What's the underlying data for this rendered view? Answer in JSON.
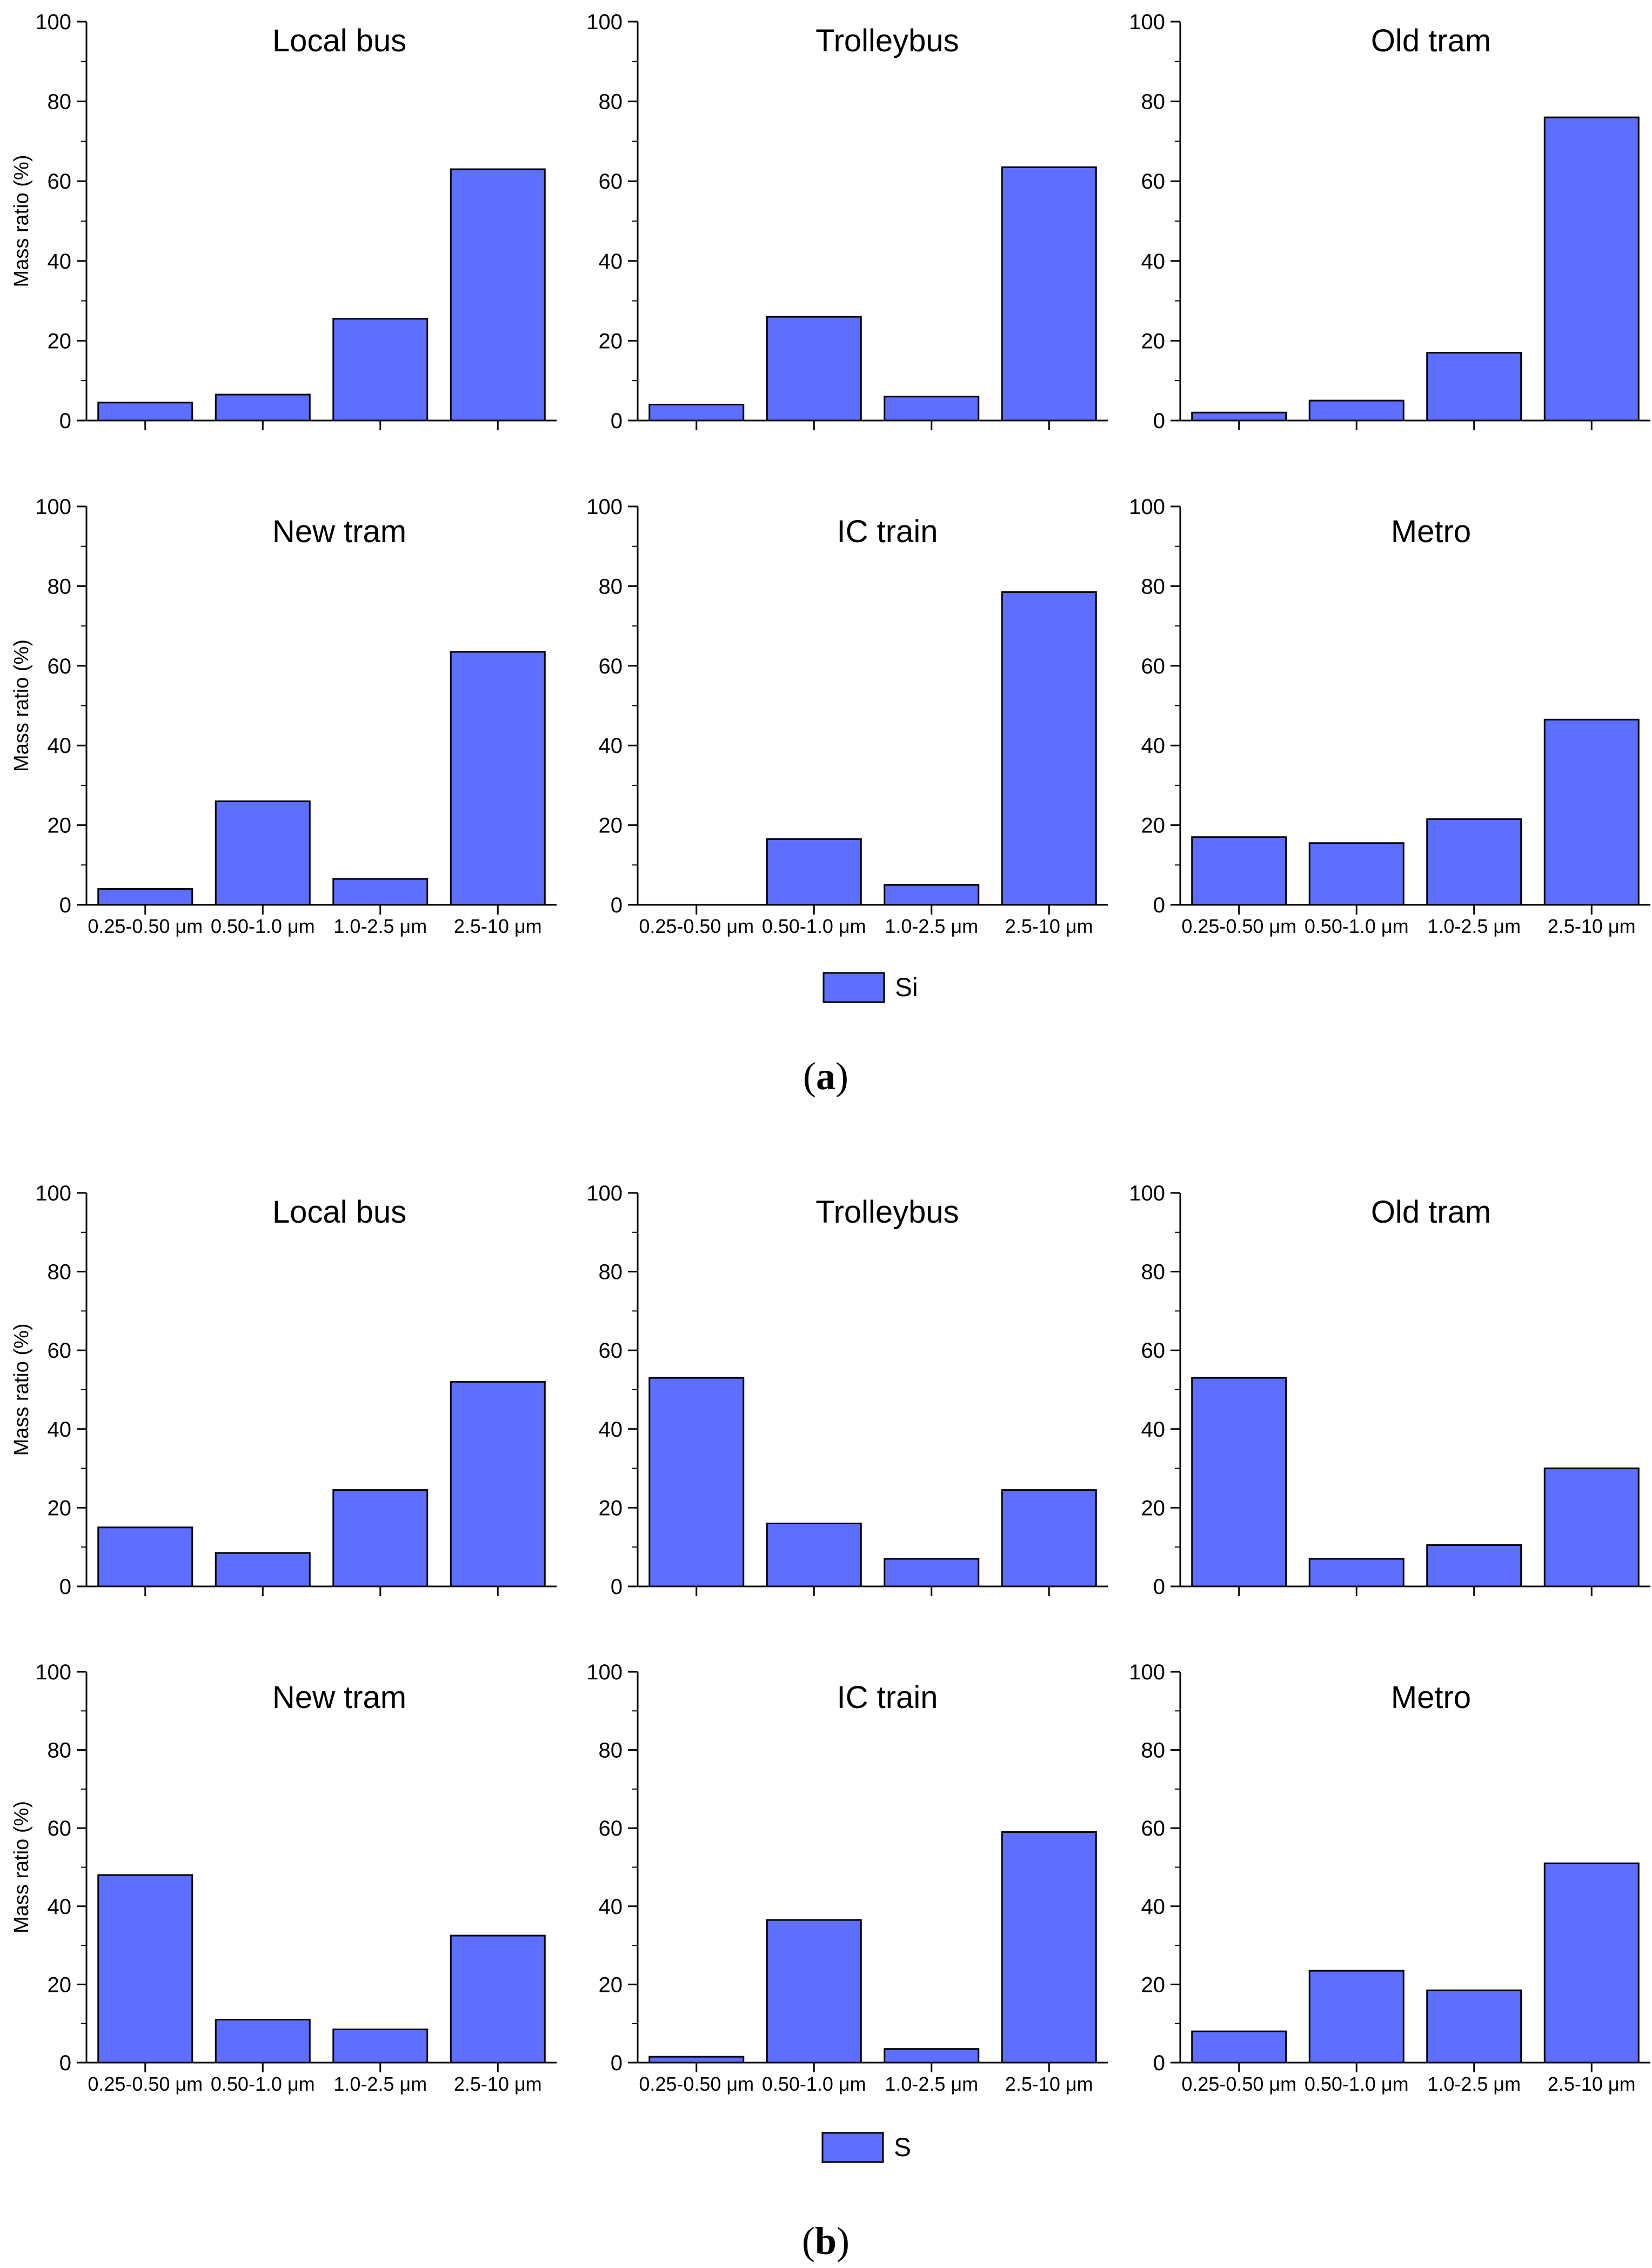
{
  "bar_color": "#5e6eff",
  "categories": [
    "0.25-0.50 μm",
    "0.50-1.0 μm",
    "1.0-2.5 μm",
    "2.5-10 μm"
  ],
  "y_ticks": [
    0,
    20,
    40,
    60,
    80,
    100
  ],
  "ylabel": "Mass ratio (%)",
  "panels": [
    {
      "label_open": "(",
      "label_letter": "a",
      "label_close": ")",
      "legend": "Si"
    },
    {
      "label_open": "(",
      "label_letter": "b",
      "label_close": ")",
      "legend": "S"
    }
  ],
  "chart_data": [
    {
      "type": "bar",
      "panel": "a",
      "title": "Local bus",
      "categories": [
        "0.25-0.50 μm",
        "0.50-1.0 μm",
        "1.0-2.5 μm",
        "2.5-10 μm"
      ],
      "series": [
        {
          "name": "Si",
          "values": [
            4.5,
            6.5,
            25.5,
            63
          ]
        }
      ],
      "ylabel": "Mass ratio (%)",
      "ylim": [
        0,
        100
      ]
    },
    {
      "type": "bar",
      "panel": "a",
      "title": "Trolleybus",
      "categories": [
        "0.25-0.50 μm",
        "0.50-1.0 μm",
        "1.0-2.5 μm",
        "2.5-10 μm"
      ],
      "series": [
        {
          "name": "Si",
          "values": [
            4,
            26,
            6,
            63.5
          ]
        }
      ],
      "ylabel": "",
      "ylim": [
        0,
        100
      ]
    },
    {
      "type": "bar",
      "panel": "a",
      "title": "Old tram",
      "categories": [
        "0.25-0.50 μm",
        "0.50-1.0 μm",
        "1.0-2.5 μm",
        "2.5-10 μm"
      ],
      "series": [
        {
          "name": "Si",
          "values": [
            2,
            5,
            17,
            76
          ]
        }
      ],
      "ylabel": "",
      "ylim": [
        0,
        100
      ]
    },
    {
      "type": "bar",
      "panel": "a",
      "title": "New tram",
      "categories": [
        "0.25-0.50 μm",
        "0.50-1.0 μm",
        "1.0-2.5 μm",
        "2.5-10 μm"
      ],
      "series": [
        {
          "name": "Si",
          "values": [
            4,
            26,
            6.5,
            63.5
          ]
        }
      ],
      "ylabel": "Mass ratio (%)",
      "ylim": [
        0,
        100
      ]
    },
    {
      "type": "bar",
      "panel": "a",
      "title": "IC train",
      "categories": [
        "0.25-0.50 μm",
        "0.50-1.0 μm",
        "1.0-2.5 μm",
        "2.5-10 μm"
      ],
      "series": [
        {
          "name": "Si",
          "values": [
            0,
            16.5,
            5,
            78.5
          ]
        }
      ],
      "ylabel": "",
      "ylim": [
        0,
        100
      ]
    },
    {
      "type": "bar",
      "panel": "a",
      "title": "Metro",
      "categories": [
        "0.25-0.50 μm",
        "0.50-1.0 μm",
        "1.0-2.5 μm",
        "2.5-10 μm"
      ],
      "series": [
        {
          "name": "Si",
          "values": [
            17,
            15.5,
            21.5,
            46.5
          ]
        }
      ],
      "ylabel": "",
      "ylim": [
        0,
        100
      ]
    },
    {
      "type": "bar",
      "panel": "b",
      "title": "Local bus",
      "categories": [
        "0.25-0.50 μm",
        "0.50-1.0 μm",
        "1.0-2.5 μm",
        "2.5-10 μm"
      ],
      "series": [
        {
          "name": "S",
          "values": [
            15,
            8.5,
            24.5,
            52
          ]
        }
      ],
      "ylabel": "Mass ratio (%)",
      "ylim": [
        0,
        100
      ]
    },
    {
      "type": "bar",
      "panel": "b",
      "title": "Trolleybus",
      "categories": [
        "0.25-0.50 μm",
        "0.50-1.0 μm",
        "1.0-2.5 μm",
        "2.5-10 μm"
      ],
      "series": [
        {
          "name": "S",
          "values": [
            53,
            16,
            7,
            24.5
          ]
        }
      ],
      "ylabel": "",
      "ylim": [
        0,
        100
      ]
    },
    {
      "type": "bar",
      "panel": "b",
      "title": "Old tram",
      "categories": [
        "0.25-0.50 μm",
        "0.50-1.0 μm",
        "1.0-2.5 μm",
        "2.5-10 μm"
      ],
      "series": [
        {
          "name": "S",
          "values": [
            53,
            7,
            10.5,
            30
          ]
        }
      ],
      "ylabel": "",
      "ylim": [
        0,
        100
      ]
    },
    {
      "type": "bar",
      "panel": "b",
      "title": "New tram",
      "categories": [
        "0.25-0.50 μm",
        "0.50-1.0 μm",
        "1.0-2.5 μm",
        "2.5-10 μm"
      ],
      "series": [
        {
          "name": "S",
          "values": [
            48,
            11,
            8.5,
            32.5
          ]
        }
      ],
      "ylabel": "Mass ratio (%)",
      "ylim": [
        0,
        100
      ]
    },
    {
      "type": "bar",
      "panel": "b",
      "title": "IC train",
      "categories": [
        "0.25-0.50 μm",
        "0.50-1.0 μm",
        "1.0-2.5 μm",
        "2.5-10 μm"
      ],
      "series": [
        {
          "name": "S",
          "values": [
            1.5,
            36.5,
            3.5,
            59
          ]
        }
      ],
      "ylabel": "",
      "ylim": [
        0,
        100
      ]
    },
    {
      "type": "bar",
      "panel": "b",
      "title": "Metro",
      "categories": [
        "0.25-0.50 μm",
        "0.50-1.0 μm",
        "1.0-2.5 μm",
        "2.5-10 μm"
      ],
      "series": [
        {
          "name": "S",
          "values": [
            8,
            23.5,
            18.5,
            51
          ]
        }
      ],
      "ylabel": "",
      "ylim": [
        0,
        100
      ]
    }
  ]
}
